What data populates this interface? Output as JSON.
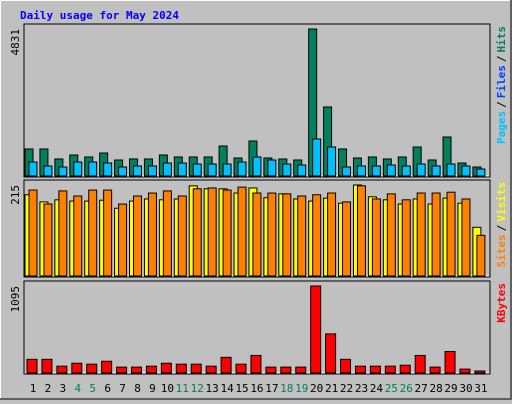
{
  "chart_data": {
    "type": "webalizer-daily",
    "title": "Daily usage for May 2024",
    "categories": [
      "1",
      "2",
      "3",
      "4",
      "5",
      "6",
      "7",
      "8",
      "9",
      "10",
      "11",
      "12",
      "13",
      "14",
      "15",
      "16",
      "17",
      "18",
      "19",
      "20",
      "21",
      "22",
      "23",
      "24",
      "25",
      "26",
      "27",
      "28",
      "29",
      "30",
      "31"
    ],
    "category_colors": [
      "#000000",
      "#000000",
      "#000000",
      "#00805c",
      "#00805c",
      "#000000",
      "#000000",
      "#000000",
      "#000000",
      "#000000",
      "#00805c",
      "#00805c",
      "#000000",
      "#000000",
      "#000000",
      "#000000",
      "#000000",
      "#00805c",
      "#00805c",
      "#000000",
      "#000000",
      "#000000",
      "#000000",
      "#000000",
      "#00805c",
      "#00805c",
      "#000000",
      "#000000",
      "#000000",
      "#000000",
      "#000000"
    ],
    "separator": "/",
    "panels": [
      {
        "ylim": [
          0,
          4831
        ],
        "yticks": [
          4831
        ],
        "series": [
          {
            "name": "Pages",
            "color": "#00c0ff",
            "values": [
              460,
              329,
              296,
              460,
              460,
              427,
              296,
              329,
              329,
              427,
              427,
              394,
              394,
              394,
              460,
              625,
              526,
              394,
              362,
              1216,
              953,
              296,
              329,
              329,
              362,
              329,
              394,
              329,
              394,
              329,
              230
            ]
          },
          {
            "name": "Files",
            "color": "#0040ff",
            "values": [
              null,
              null,
              null,
              null,
              null,
              null,
              null,
              null,
              null,
              null,
              null,
              null,
              null,
              null,
              null,
              null,
              null,
              null,
              null,
              null,
              null,
              null,
              null,
              null,
              null,
              null,
              null,
              null,
              null,
              null,
              null
            ]
          },
          {
            "name": "Hits",
            "color": "#00805c",
            "values": [
              888,
              888,
              560,
              690,
              625,
              756,
              526,
              560,
              560,
              690,
              625,
              625,
              625,
              986,
              592,
              1150,
              592,
              560,
              526,
              4831,
              2268,
              888,
              592,
              625,
              560,
              625,
              953,
              526,
              1282,
              427,
              296
            ]
          }
        ]
      },
      {
        "ylim": [
          0,
          215
        ],
        "yticks": [
          215
        ],
        "series": [
          {
            "name": "Sites",
            "color": "#ff8000",
            "values": [
              203,
              170,
              201,
              189,
              203,
              203,
              170,
              189,
              196,
              201,
              189,
              206,
              208,
              203,
              210,
              196,
              196,
              194,
              189,
              192,
              196,
              175,
              213,
              182,
              194,
              180,
              196,
              196,
              198,
              182,
              96
            ]
          },
          {
            "name": "Visits",
            "color": "#ffff00",
            "values": [
              192,
              175,
              180,
              177,
              177,
              179,
              160,
              177,
              182,
              180,
              182,
              213,
              206,
              206,
              196,
              208,
              185,
              194,
              182,
              177,
              184,
              172,
              215,
              187,
              180,
              170,
              182,
              170,
              184,
              172,
              115
            ]
          }
        ]
      },
      {
        "ylim": [
          0,
          1095
        ],
        "yticks": [
          1095
        ],
        "series": [
          {
            "name": "KBytes",
            "color": "#ff0000",
            "values": [
              172,
              172,
              86,
              123,
              111,
              148,
              74,
              74,
              86,
              123,
              111,
              111,
              86,
              197,
              111,
              221,
              74,
              74,
              74,
              1095,
              492,
              172,
              86,
              86,
              86,
              98,
              221,
              74,
              271,
              49,
              25
            ]
          }
        ]
      }
    ]
  }
}
